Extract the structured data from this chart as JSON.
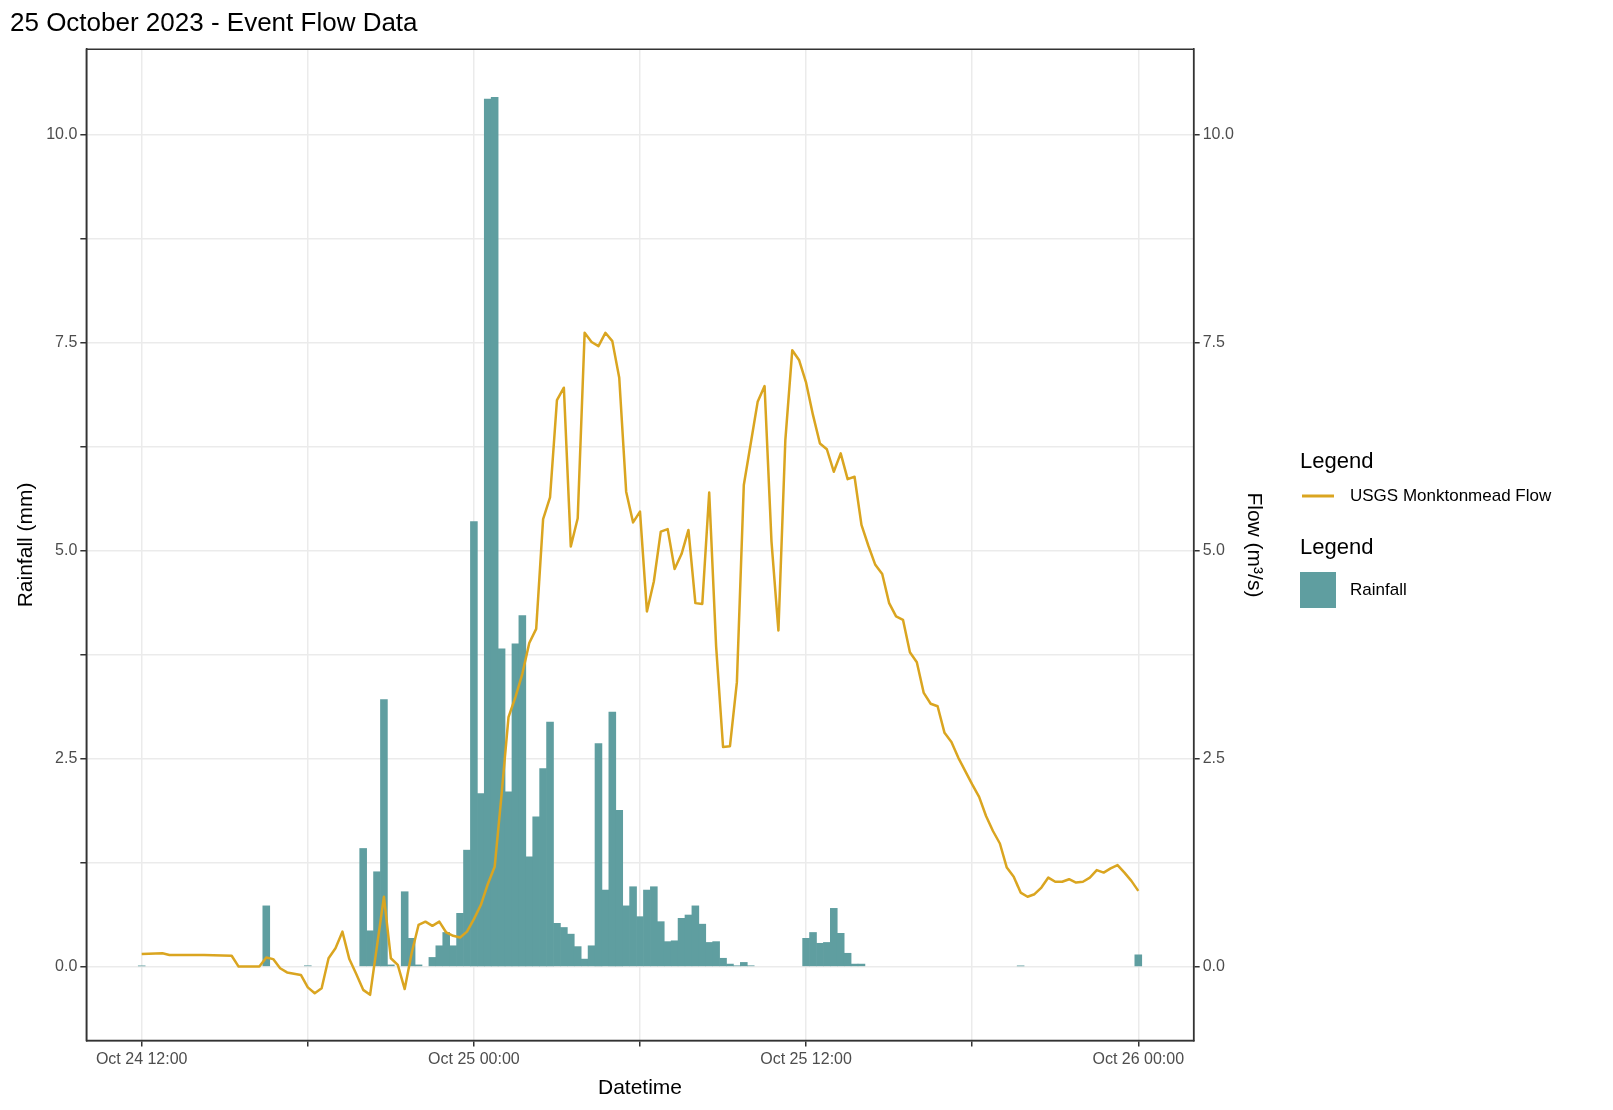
{
  "chart_data": {
    "type": "bar",
    "title": "25 October 2023 - Event Flow Data",
    "xlabel": "Datetime",
    "ylabel": "Rainfall (mm)",
    "y2label": "Flow (m³/s)",
    "legend_title": "Legend",
    "legend": "right",
    "grid": true,
    "xlim": [
      "2023-10-24T10:00",
      "2023-10-26T02:00"
    ],
    "xticks": [
      {
        "value": "2023-10-24T12:00",
        "label": "Oct 24 12:00"
      },
      {
        "value": "2023-10-24T18:00",
        "label": null
      },
      {
        "value": "2023-10-25T00:00",
        "label": "Oct 25 00:00"
      },
      {
        "value": "2023-10-25T06:00",
        "label": null
      },
      {
        "value": "2023-10-25T12:00",
        "label": "Oct 25 12:00"
      },
      {
        "value": "2023-10-25T18:00",
        "label": null
      },
      {
        "value": "2023-10-26T00:00",
        "label": "Oct 26 00:00"
      }
    ],
    "ylim": [
      -0.89,
      11.03
    ],
    "yticks": [
      {
        "value": 0,
        "label": "0.0"
      },
      {
        "value": 1.25,
        "label": null
      },
      {
        "value": 2.5,
        "label": "2.5"
      },
      {
        "value": 3.75,
        "label": null
      },
      {
        "value": 5,
        "label": "5.0"
      },
      {
        "value": 6.25,
        "label": null
      },
      {
        "value": 7.5,
        "label": "7.5"
      },
      {
        "value": 8.75,
        "label": null
      },
      {
        "value": 10,
        "label": "10.0"
      }
    ],
    "y2lim": [
      -0.89,
      11.03
    ],
    "y2ticks": [
      {
        "value": 0,
        "label": "0.0"
      },
      {
        "value": 2.5,
        "label": "2.5"
      },
      {
        "value": 5,
        "label": "5.0"
      },
      {
        "value": 7.5,
        "label": "7.5"
      },
      {
        "value": 10,
        "label": "10.0"
      }
    ],
    "series": [
      {
        "name": "USGS Monktonmead Flow",
        "type": "line",
        "axis": "y2",
        "color": "#daa520",
        "x": [
          "2023-10-24T12:00",
          "2023-10-24T12:45",
          "2023-10-24T13:00",
          "2023-10-24T14:15",
          "2023-10-24T15:15",
          "2023-10-24T15:30",
          "2023-10-24T16:15",
          "2023-10-24T16:30",
          "2023-10-24T16:45",
          "2023-10-24T17:00",
          "2023-10-24T17:15",
          "2023-10-24T17:45",
          "2023-10-24T18:00",
          "2023-10-24T18:15",
          "2023-10-24T18:30",
          "2023-10-24T18:45",
          "2023-10-24T19:00",
          "2023-10-24T19:15",
          "2023-10-24T19:30",
          "2023-10-24T19:45",
          "2023-10-24T20:00",
          "2023-10-24T20:15",
          "2023-10-24T20:45",
          "2023-10-24T21:00",
          "2023-10-24T21:15",
          "2023-10-24T21:30",
          "2023-10-24T21:45",
          "2023-10-24T22:00",
          "2023-10-24T22:15",
          "2023-10-24T22:30",
          "2023-10-24T22:45",
          "2023-10-24T23:00",
          "2023-10-24T23:15",
          "2023-10-24T23:30",
          "2023-10-24T23:45",
          "2023-10-25T00:00",
          "2023-10-25T00:15",
          "2023-10-25T00:30",
          "2023-10-25T00:45",
          "2023-10-25T01:00",
          "2023-10-25T01:15",
          "2023-10-25T01:30",
          "2023-10-25T01:45",
          "2023-10-25T02:00",
          "2023-10-25T02:15",
          "2023-10-25T02:30",
          "2023-10-25T02:45",
          "2023-10-25T03:00",
          "2023-10-25T03:15",
          "2023-10-25T03:30",
          "2023-10-25T03:45",
          "2023-10-25T04:00",
          "2023-10-25T04:15",
          "2023-10-25T04:30",
          "2023-10-25T04:45",
          "2023-10-25T05:00",
          "2023-10-25T05:15",
          "2023-10-25T05:30",
          "2023-10-25T05:45",
          "2023-10-25T06:00",
          "2023-10-25T06:15",
          "2023-10-25T06:30",
          "2023-10-25T06:45",
          "2023-10-25T07:00",
          "2023-10-25T07:15",
          "2023-10-25T07:30",
          "2023-10-25T07:45",
          "2023-10-25T08:00",
          "2023-10-25T08:15",
          "2023-10-25T08:30",
          "2023-10-25T08:45",
          "2023-10-25T09:00",
          "2023-10-25T09:15",
          "2023-10-25T09:30",
          "2023-10-25T09:45",
          "2023-10-25T10:00",
          "2023-10-25T10:15",
          "2023-10-25T10:30",
          "2023-10-25T10:45",
          "2023-10-25T11:00",
          "2023-10-25T11:15",
          "2023-10-25T11:30",
          "2023-10-25T11:45",
          "2023-10-25T12:00",
          "2023-10-25T12:15",
          "2023-10-25T12:30",
          "2023-10-25T12:45",
          "2023-10-25T13:00",
          "2023-10-25T13:15",
          "2023-10-25T13:30",
          "2023-10-25T13:45",
          "2023-10-25T14:00",
          "2023-10-25T14:15",
          "2023-10-25T14:30",
          "2023-10-25T14:45",
          "2023-10-25T15:00",
          "2023-10-25T15:15",
          "2023-10-25T15:30",
          "2023-10-25T15:45",
          "2023-10-25T16:00",
          "2023-10-25T16:15",
          "2023-10-25T16:30",
          "2023-10-25T16:45",
          "2023-10-25T17:00",
          "2023-10-25T17:15",
          "2023-10-25T17:30",
          "2023-10-25T17:45",
          "2023-10-25T18:00",
          "2023-10-25T18:15",
          "2023-10-25T18:30",
          "2023-10-25T18:45",
          "2023-10-25T19:00",
          "2023-10-25T19:15",
          "2023-10-25T19:30",
          "2023-10-25T19:45",
          "2023-10-25T20:00",
          "2023-10-25T20:15",
          "2023-10-25T20:30",
          "2023-10-25T20:45",
          "2023-10-25T21:00",
          "2023-10-25T21:15",
          "2023-10-25T21:30",
          "2023-10-25T21:45",
          "2023-10-25T22:00",
          "2023-10-25T22:15",
          "2023-10-25T22:30",
          "2023-10-25T22:45",
          "2023-10-25T23:00",
          "2023-10-25T23:15",
          "2023-10-25T23:30",
          "2023-10-25T23:45",
          "2023-10-26T00:00"
        ],
        "values": [
          0.15,
          0.16,
          0.14,
          0.14,
          0.13,
          0.0,
          0.0,
          0.11,
          0.09,
          -0.02,
          -0.07,
          -0.1,
          -0.25,
          -0.32,
          -0.26,
          0.1,
          0.22,
          0.42,
          0.09,
          -0.09,
          -0.28,
          -0.34,
          0.84,
          0.1,
          0.02,
          -0.27,
          0.16,
          0.5,
          0.54,
          0.49,
          0.54,
          0.41,
          0.37,
          0.35,
          0.42,
          0.57,
          0.74,
          0.99,
          1.2,
          2.07,
          3.0,
          3.24,
          3.52,
          3.89,
          4.06,
          5.38,
          5.64,
          6.81,
          6.96,
          5.05,
          5.39,
          7.62,
          7.51,
          7.46,
          7.62,
          7.52,
          7.08,
          5.71,
          5.34,
          5.47,
          4.27,
          4.63,
          5.23,
          5.26,
          4.78,
          4.96,
          5.25,
          4.37,
          4.36,
          5.7,
          3.85,
          2.64,
          2.65,
          3.42,
          5.79,
          6.29,
          6.79,
          6.98,
          5.11,
          4.04,
          6.33,
          7.41,
          7.29,
          7.02,
          6.63,
          6.29,
          6.22,
          5.95,
          6.17,
          5.86,
          5.89,
          5.31,
          5.06,
          4.83,
          4.72,
          4.37,
          4.21,
          4.17,
          3.78,
          3.66,
          3.29,
          3.16,
          3.13,
          2.81,
          2.7,
          2.51,
          2.35,
          2.19,
          2.04,
          1.81,
          1.63,
          1.48,
          1.19,
          1.08,
          0.89,
          0.84,
          0.87,
          0.95,
          1.07,
          1.02,
          1.02,
          1.05,
          1.01,
          1.02,
          1.07,
          1.16,
          1.13,
          1.18,
          1.22,
          1.13,
          1.03,
          0.91
        ]
      },
      {
        "name": "Rainfall",
        "type": "bar",
        "color": "#5f9ea0",
        "x": [
          "2023-10-24T12:00",
          "2023-10-24T16:30",
          "2023-10-24T18:00",
          "2023-10-24T20:00",
          "2023-10-24T20:15",
          "2023-10-24T20:30",
          "2023-10-24T20:45",
          "2023-10-24T21:00",
          "2023-10-24T21:30",
          "2023-10-24T21:45",
          "2023-10-24T22:00",
          "2023-10-24T22:30",
          "2023-10-24T22:45",
          "2023-10-24T23:00",
          "2023-10-24T23:15",
          "2023-10-24T23:30",
          "2023-10-24T23:45",
          "2023-10-25T00:00",
          "2023-10-25T00:15",
          "2023-10-25T00:30",
          "2023-10-25T00:45",
          "2023-10-25T01:00",
          "2023-10-25T01:15",
          "2023-10-25T01:30",
          "2023-10-25T01:45",
          "2023-10-25T02:00",
          "2023-10-25T02:15",
          "2023-10-25T02:30",
          "2023-10-25T02:45",
          "2023-10-25T03:00",
          "2023-10-25T03:15",
          "2023-10-25T03:30",
          "2023-10-25T03:45",
          "2023-10-25T04:00",
          "2023-10-25T04:15",
          "2023-10-25T04:30",
          "2023-10-25T04:45",
          "2023-10-25T05:00",
          "2023-10-25T05:15",
          "2023-10-25T05:30",
          "2023-10-25T05:45",
          "2023-10-25T06:00",
          "2023-10-25T06:15",
          "2023-10-25T06:30",
          "2023-10-25T06:45",
          "2023-10-25T07:00",
          "2023-10-25T07:15",
          "2023-10-25T07:30",
          "2023-10-25T07:45",
          "2023-10-25T08:00",
          "2023-10-25T08:15",
          "2023-10-25T08:30",
          "2023-10-25T08:45",
          "2023-10-25T09:00",
          "2023-10-25T09:15",
          "2023-10-25T09:30",
          "2023-10-25T09:45",
          "2023-10-25T10:00",
          "2023-10-25T12:00",
          "2023-10-25T12:15",
          "2023-10-25T12:30",
          "2023-10-25T12:45",
          "2023-10-25T13:00",
          "2023-10-25T13:15",
          "2023-10-25T13:30",
          "2023-10-25T13:45",
          "2023-10-25T14:00",
          "2023-10-25T19:45",
          "2023-10-26T00:00"
        ],
        "values": [
          0.01,
          0.73,
          0.01,
          1.42,
          0.43,
          1.14,
          3.21,
          0.02,
          0.9,
          0.34,
          0.02,
          0.11,
          0.25,
          0.41,
          0.25,
          0.64,
          1.4,
          5.35,
          2.08,
          10.43,
          10.45,
          3.82,
          2.1,
          3.88,
          4.22,
          1.32,
          1.8,
          2.38,
          2.94,
          0.52,
          0.47,
          0.39,
          0.24,
          0.09,
          0.25,
          2.68,
          0.92,
          3.06,
          1.88,
          0.73,
          0.96,
          0.6,
          0.92,
          0.96,
          0.54,
          0.3,
          0.31,
          0.58,
          0.62,
          0.73,
          0.51,
          0.29,
          0.3,
          0.1,
          0.03,
          0.01,
          0.05,
          0.01,
          0.34,
          0.41,
          0.28,
          0.29,
          0.7,
          0.4,
          0.16,
          0.03,
          0.03,
          0.01,
          0.14
        ]
      }
    ]
  }
}
